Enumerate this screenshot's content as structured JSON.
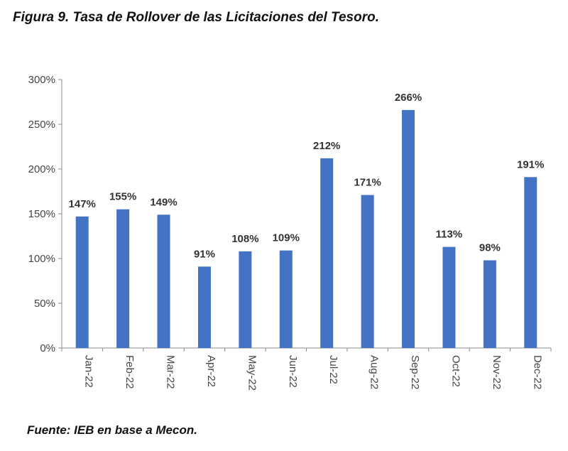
{
  "header": {
    "title": "Figura 9. Tasa de Rollover de las Licitaciones del Tesoro."
  },
  "footer": {
    "source": "Fuente: IEB en base a Mecon."
  },
  "chart_data": {
    "type": "bar",
    "title": "Figura 9. Tasa de Rollover de las Licitaciones del Tesoro.",
    "xlabel": "",
    "ylabel": "",
    "categories": [
      "Jan-22",
      "Feb-22",
      "Mar-22",
      "Apr-22",
      "May-22",
      "Jun-22",
      "Jul-22",
      "Aug-22",
      "Sep-22",
      "Oct-22",
      "Nov-22",
      "Dec-22"
    ],
    "values": [
      147,
      155,
      149,
      91,
      108,
      109,
      212,
      171,
      266,
      113,
      98,
      191
    ],
    "data_labels": [
      "147%",
      "155%",
      "149%",
      "91%",
      "108%",
      "109%",
      "212%",
      "171%",
      "266%",
      "113%",
      "98%",
      "191%"
    ],
    "ylim": [
      0,
      300
    ],
    "yticks": [
      0,
      50,
      100,
      150,
      200,
      250,
      300
    ],
    "ytick_labels": [
      "0%",
      "50%",
      "100%",
      "150%",
      "200%",
      "250%",
      "300%"
    ],
    "bar_color": "#4472C4",
    "grid": false,
    "legend": "none"
  }
}
